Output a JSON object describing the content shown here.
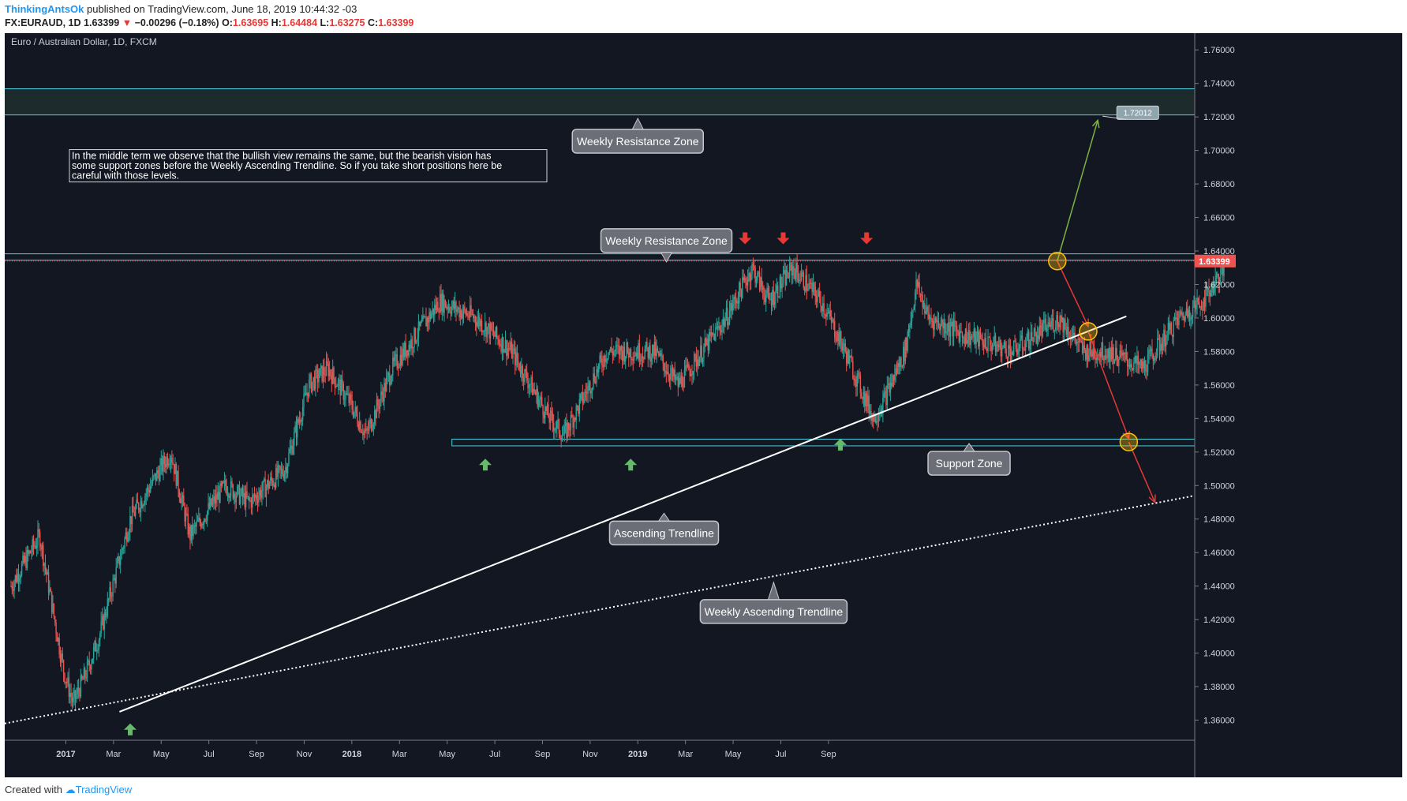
{
  "header": {
    "author": "ThinkingAntsOk",
    "published": "published on TradingView.com, June 18, 2019 10:44:32 -03",
    "symbol": "FX:EURAUD, 1D",
    "last": "1.63399",
    "change": "−0.00296 (−0.18%)",
    "open_label": "O:",
    "open": "1.63695",
    "high_label": "H:",
    "high": "1.64484",
    "low_label": "L:",
    "low": "1.63275",
    "close_label": "C:",
    "close": "1.63399"
  },
  "footer": {
    "created": "Created with",
    "brand": "TradingView"
  },
  "colors": {
    "bg": "#131722",
    "up": "#26a69a",
    "down": "#ef5350",
    "zone": "#4dd0e1",
    "label_bg": "#6b6e76"
  },
  "chart_data": {
    "type": "candlestick",
    "title": "Euro / Australian Dollar, 1D, FXCM",
    "price_scale": [
      "1.76000",
      "1.74000",
      "1.72000",
      "1.70000",
      "1.68000",
      "1.66000",
      "1.64000",
      "1.62000",
      "1.60000",
      "1.58000",
      "1.56000",
      "1.54000",
      "1.52000",
      "1.50000",
      "1.48000",
      "1.46000",
      "1.44000",
      "1.42000",
      "1.40000",
      "1.38000",
      "1.36000"
    ],
    "ylim": [
      1.348,
      1.77
    ],
    "time_scale": [
      "2017",
      "Mar",
      "May",
      "Jul",
      "Sep",
      "Nov",
      "2018",
      "Mar",
      "May",
      "Jul",
      "Sep",
      "Nov",
      "2019",
      "Mar",
      "May",
      "Jul",
      "Sep"
    ],
    "current_price": "1.63399",
    "target_label": "1.72012",
    "path_closes": [
      [
        0,
        1.44
      ],
      [
        1.2,
        1.47
      ],
      [
        2.2,
        1.39
      ],
      [
        2.6,
        1.37
      ],
      [
        3.2,
        1.39
      ],
      [
        3.7,
        1.41
      ],
      [
        5,
        1.48
      ],
      [
        6.7,
        1.52
      ],
      [
        7.5,
        1.47
      ],
      [
        9,
        1.5
      ],
      [
        10,
        1.49
      ],
      [
        11.5,
        1.51
      ],
      [
        12.5,
        1.56
      ],
      [
        13.3,
        1.57
      ],
      [
        14.2,
        1.55
      ],
      [
        14.9,
        1.53
      ],
      [
        16,
        1.57
      ],
      [
        18,
        1.61
      ],
      [
        19.5,
        1.6
      ],
      [
        21,
        1.58
      ],
      [
        22.6,
        1.54
      ],
      [
        23.2,
        1.53
      ],
      [
        25,
        1.58
      ],
      [
        27,
        1.58
      ],
      [
        28,
        1.56
      ],
      [
        30,
        1.6
      ],
      [
        31.1,
        1.63
      ],
      [
        31.8,
        1.61
      ],
      [
        32.8,
        1.63
      ],
      [
        34,
        1.61
      ],
      [
        35,
        1.58
      ],
      [
        36.2,
        1.54
      ],
      [
        36.6,
        1.55
      ],
      [
        37.5,
        1.58
      ],
      [
        38,
        1.62
      ],
      [
        38.5,
        1.6
      ],
      [
        40,
        1.59
      ],
      [
        42,
        1.58
      ],
      [
        44,
        1.6
      ],
      [
        45,
        1.58
      ],
      [
        46,
        1.58
      ],
      [
        47.5,
        1.57
      ],
      [
        49,
        1.6
      ],
      [
        50,
        1.61
      ],
      [
        50.9,
        1.63
      ]
    ],
    "annotations": {
      "note": "In the middle term we observe that the bullish view remains the same, but the bearish vision has some support zones before the Weekly Ascending Trendline. So if you take short positions here be careful with those levels.",
      "weekly_resistance_top": "Weekly Resistance Zone",
      "weekly_resistance_mid": "Weekly Resistance Zone",
      "support_zone": "Support Zone",
      "ascending_trendline": "Ascending Trendline",
      "weekly_ascending_trendline": "Weekly Ascending Trendline"
    }
  }
}
